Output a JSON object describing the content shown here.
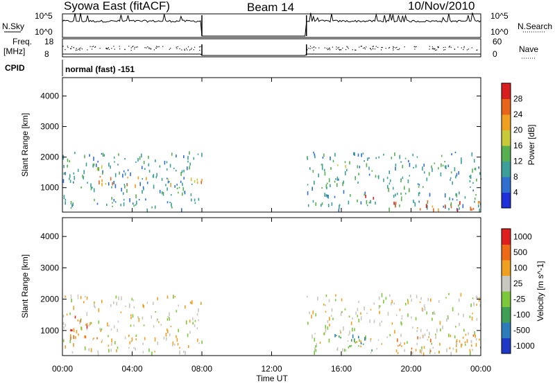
{
  "header": {
    "title": "Syowa East (fitACF)",
    "beam": "Beam 14",
    "date": "10/Nov/2010"
  },
  "status_panels": {
    "nsky_label": "N.Sky",
    "nsky_ticks": [
      "10^5",
      "10^0"
    ],
    "nsearch_label": "N.Search",
    "nsearch_ticks": [
      "10^5",
      "10^0"
    ],
    "freq_label_1": "Freq.",
    "freq_label_2": "[MHz]",
    "freq_ticks": [
      "18",
      "8"
    ],
    "nave_label": "Nave",
    "nave_ticks": [
      "60",
      "0"
    ],
    "cpid_label": "CPID",
    "cpid_value": "normal (fast) -151"
  },
  "chart_data": [
    {
      "type": "heatmap",
      "panel": "power",
      "ylabel": "Slant Range [km]",
      "xlabel": "",
      "ylim": [
        200,
        4600
      ],
      "yticks": [
        "1000",
        "2000",
        "3000",
        "4000"
      ],
      "colorbar": {
        "label": "Power [dB]",
        "ticks": [
          "4",
          "8",
          "12",
          "16",
          "20",
          "24",
          "28"
        ],
        "colors": [
          "#1f2fd9",
          "#2f6fd0",
          "#3d9f9a",
          "#56b04f",
          "#c8c83a",
          "#f0a020",
          "#e86418",
          "#d81e1e"
        ]
      },
      "data_gap_hours": [
        8,
        14
      ],
      "regions": [
        {
          "t": [
            0.0,
            8.0
          ],
          "r": [
            300,
            2200
          ],
          "level": 2
        },
        {
          "t": [
            2.0,
            8.0
          ],
          "r": [
            1100,
            1400
          ],
          "level": 5
        },
        {
          "t": [
            1.5,
            3.5
          ],
          "r": [
            1650,
            1850
          ],
          "level": 3
        },
        {
          "t": [
            14.0,
            24.0
          ],
          "r": [
            300,
            2200
          ],
          "level": 2
        },
        {
          "t": [
            14.5,
            16.5
          ],
          "r": [
            1500,
            1800
          ],
          "level": 3
        },
        {
          "t": [
            17.0,
            18.0
          ],
          "r": [
            600,
            800
          ],
          "level": 7
        },
        {
          "t": [
            18.5,
            24.0
          ],
          "r": [
            300,
            600
          ],
          "level": 6
        }
      ]
    },
    {
      "type": "heatmap",
      "panel": "velocity",
      "ylabel": "Slant Range [km]",
      "xlabel": "Time UT",
      "ylim": [
        200,
        4600
      ],
      "yticks": [
        "1000",
        "2000",
        "3000",
        "4000"
      ],
      "colorbar": {
        "label": "Velocity [m s^-1]",
        "ticks": [
          "1000",
          "500",
          "100",
          "25",
          "-25",
          "-100",
          "-500",
          "-1000"
        ],
        "colors": [
          "#2038c8",
          "#2c7cbc",
          "#3f9f55",
          "#7cc83a",
          "#c8c8c0",
          "#f0a020",
          "#ee6a16",
          "#e01e1e"
        ]
      },
      "data_gap_hours": [
        8,
        14
      ],
      "regions": [
        {
          "t": [
            0.0,
            8.0
          ],
          "r": [
            300,
            2200
          ],
          "level": 4
        },
        {
          "t": [
            0.0,
            1.5
          ],
          "r": [
            800,
            1500
          ],
          "level": 6
        },
        {
          "t": [
            1.5,
            3.0
          ],
          "r": [
            600,
            800
          ],
          "level": 5
        },
        {
          "t": [
            14.0,
            24.0
          ],
          "r": [
            300,
            2200
          ],
          "level": 4
        },
        {
          "t": [
            15.5,
            18.0
          ],
          "r": [
            400,
            900
          ],
          "level": 2
        },
        {
          "t": [
            19.0,
            24.0
          ],
          "r": [
            300,
            900
          ],
          "level": 5
        }
      ]
    }
  ],
  "time_axis": {
    "ticks": [
      "00:00",
      "04:00",
      "08:00",
      "12:00",
      "16:00",
      "20:00",
      "00:00"
    ],
    "label": "Time UT"
  }
}
